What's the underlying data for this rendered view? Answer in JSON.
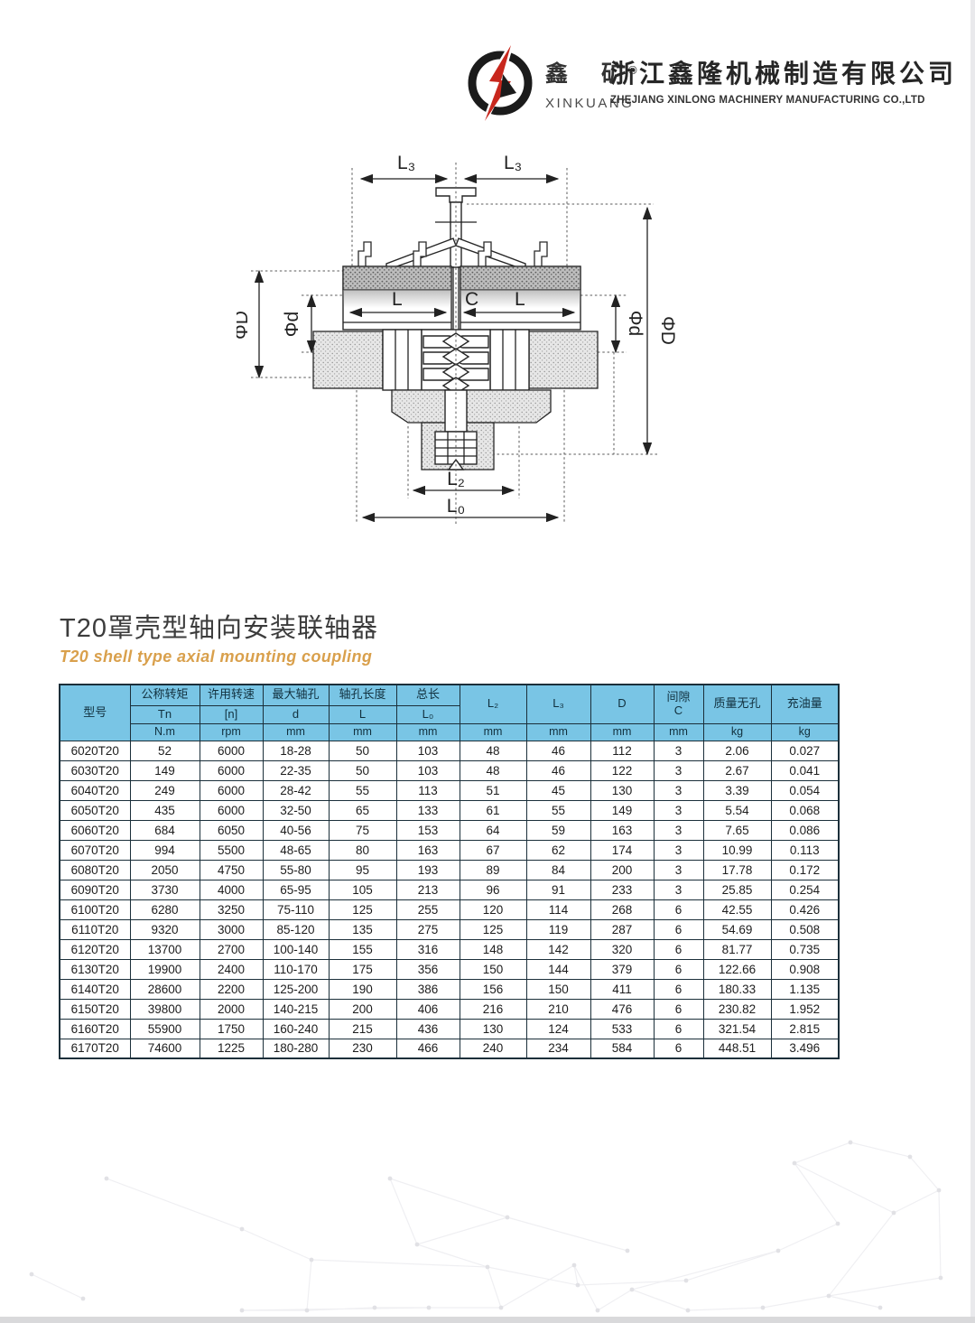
{
  "header": {
    "logo": {
      "cn": "鑫 矿",
      "registered": "®",
      "en": "XINKUANG"
    },
    "company_cn": "浙江鑫隆机械制造有限公司",
    "company_en": "ZHEJIANG XINLONG MACHINERY MANUFACTURING CO.,LTD"
  },
  "diagram": {
    "labels": {
      "l3_left": "L₃",
      "l3_right": "L₃",
      "phiD_left": "ΦD",
      "phid_left": "Φd",
      "L_left": "L",
      "C": "C",
      "L_right": "L",
      "phid_right": "Φd",
      "phiD_right": "ΦD",
      "l2": "L₂",
      "l0": "L₀"
    }
  },
  "section": {
    "title_cn": "T20罩壳型轴向安装联轴器",
    "title_en": "T20 shell type axial mounting coupling"
  },
  "table": {
    "header": {
      "model": "型号",
      "groups": [
        {
          "l1": "公称转矩",
          "l2": "Tn",
          "l3": "N.m"
        },
        {
          "l1": "许用转速",
          "l2": "[n]",
          "l3": "rpm"
        },
        {
          "l1": "最大轴孔",
          "l2": "d",
          "l3": "mm"
        },
        {
          "l1": "轴孔长度",
          "l2": "L",
          "l3": "mm"
        },
        {
          "l1": "总长",
          "l2": "L₀",
          "l3": "mm"
        }
      ],
      "spans": [
        {
          "label": "L₂",
          "unit": "mm"
        },
        {
          "label": "L₃",
          "unit": "mm"
        },
        {
          "label": "D",
          "unit": "mm"
        },
        {
          "label": "间隙",
          "label2": "C",
          "unit": "mm"
        },
        {
          "label": "质量无孔",
          "unit": "kg"
        },
        {
          "label": "充油量",
          "unit": "kg"
        }
      ]
    },
    "rows": [
      [
        "6020T20",
        "52",
        "6000",
        "18-28",
        "50",
        "103",
        "48",
        "46",
        "112",
        "3",
        "2.06",
        "0.027"
      ],
      [
        "6030T20",
        "149",
        "6000",
        "22-35",
        "50",
        "103",
        "48",
        "46",
        "122",
        "3",
        "2.67",
        "0.041"
      ],
      [
        "6040T20",
        "249",
        "6000",
        "28-42",
        "55",
        "113",
        "51",
        "45",
        "130",
        "3",
        "3.39",
        "0.054"
      ],
      [
        "6050T20",
        "435",
        "6000",
        "32-50",
        "65",
        "133",
        "61",
        "55",
        "149",
        "3",
        "5.54",
        "0.068"
      ],
      [
        "6060T20",
        "684",
        "6050",
        "40-56",
        "75",
        "153",
        "64",
        "59",
        "163",
        "3",
        "7.65",
        "0.086"
      ],
      [
        "6070T20",
        "994",
        "5500",
        "48-65",
        "80",
        "163",
        "67",
        "62",
        "174",
        "3",
        "10.99",
        "0.113"
      ],
      [
        "6080T20",
        "2050",
        "4750",
        "55-80",
        "95",
        "193",
        "89",
        "84",
        "200",
        "3",
        "17.78",
        "0.172"
      ],
      [
        "6090T20",
        "3730",
        "4000",
        "65-95",
        "105",
        "213",
        "96",
        "91",
        "233",
        "3",
        "25.85",
        "0.254"
      ],
      [
        "6100T20",
        "6280",
        "3250",
        "75-110",
        "125",
        "255",
        "120",
        "114",
        "268",
        "6",
        "42.55",
        "0.426"
      ],
      [
        "6110T20",
        "9320",
        "3000",
        "85-120",
        "135",
        "275",
        "125",
        "119",
        "287",
        "6",
        "54.69",
        "0.508"
      ],
      [
        "6120T20",
        "13700",
        "2700",
        "100-140",
        "155",
        "316",
        "148",
        "142",
        "320",
        "6",
        "81.77",
        "0.735"
      ],
      [
        "6130T20",
        "19900",
        "2400",
        "110-170",
        "175",
        "356",
        "150",
        "144",
        "379",
        "6",
        "122.66",
        "0.908"
      ],
      [
        "6140T20",
        "28600",
        "2200",
        "125-200",
        "190",
        "386",
        "156",
        "150",
        "411",
        "6",
        "180.33",
        "1.135"
      ],
      [
        "6150T20",
        "39800",
        "2000",
        "140-215",
        "200",
        "406",
        "216",
        "210",
        "476",
        "6",
        "230.82",
        "1.952"
      ],
      [
        "6160T20",
        "55900",
        "1750",
        "160-240",
        "215",
        "436",
        "130",
        "124",
        "533",
        "6",
        "321.54",
        "2.815"
      ],
      [
        "6170T20",
        "74600",
        "1225",
        "180-280",
        "230",
        "466",
        "240",
        "234",
        "584",
        "6",
        "448.51",
        "3.496"
      ]
    ]
  },
  "colors": {
    "header_blue": "#79c5e5",
    "title_orange": "#d9a04c",
    "border_dark": "#1b2f3a"
  }
}
